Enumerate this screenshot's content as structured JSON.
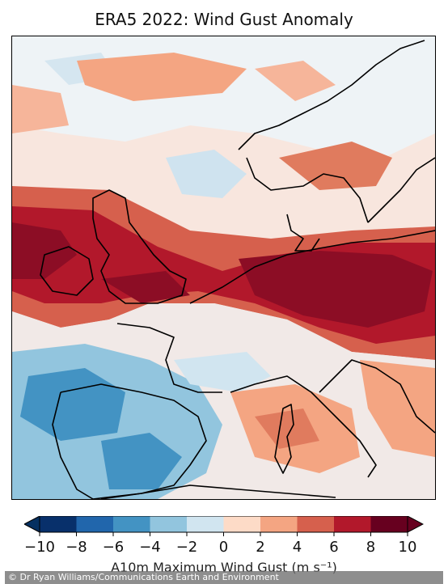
{
  "title": "ERA5 2022: Wind Gust Anomaly",
  "colorbar": {
    "ticks": [
      "−10",
      "−8",
      "−6",
      "−4",
      "−2",
      "0",
      "2",
      "4",
      "6",
      "8",
      "10"
    ],
    "label": "A10m Maximum Wind Gust (m s⁻¹)",
    "levels": [
      -10,
      -8,
      -6,
      -4,
      -2,
      0,
      2,
      4,
      6,
      8,
      10
    ],
    "colors": [
      "#08306b",
      "#2166ac",
      "#4393c3",
      "#92c5de",
      "#d1e5f0",
      "#fddbc7",
      "#f4a582",
      "#d6604d",
      "#b2182b",
      "#67001f"
    ]
  },
  "credit": "© Dr Ryan Williams/Communications Earth and Environment"
}
